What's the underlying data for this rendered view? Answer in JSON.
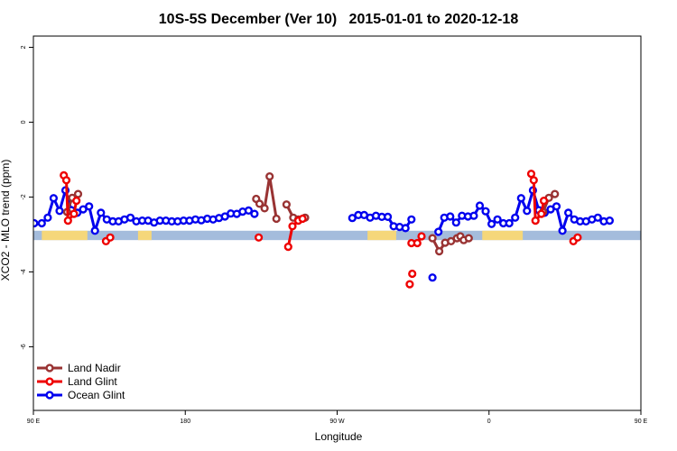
{
  "chart_data": {
    "type": "line",
    "title": "10S-5S December (Ver 10)   2015-01-01 to 2020-12-18",
    "xlabel": "Longitude",
    "ylabel": "XCO2 - MLO trend (ppm)",
    "xlim": [
      90,
      450
    ],
    "ylim": [
      -7.7,
      2.3
    ],
    "x_ticks": [
      {
        "value": 90,
        "label": "90 E"
      },
      {
        "value": 180,
        "label": "180"
      },
      {
        "value": 270,
        "label": "90 W"
      },
      {
        "value": 360,
        "label": "0"
      },
      {
        "value": 450,
        "label": "90 E"
      },
      {
        "value": 540,
        "label": "180"
      }
    ],
    "y_ticks": [
      {
        "value": 2,
        "label": "2"
      },
      {
        "value": 0,
        "label": "0"
      },
      {
        "value": -2,
        "label": "-2"
      },
      {
        "value": -4,
        "label": "-4"
      },
      {
        "value": -6,
        "label": "-6"
      }
    ],
    "grid": false,
    "legend_position": "bottom-left",
    "legend": [
      {
        "name": "Land Nadir",
        "color": "#993333"
      },
      {
        "name": "Land Glint",
        "color": "#ee0000"
      },
      {
        "name": "Ocean Glint",
        "color": "#0000ee"
      }
    ],
    "band": {
      "y_top": -2.9,
      "y_bottom": -3.15,
      "land_color": "#f5d77a",
      "ocean_color": "#a4bcdc"
    },
    "land_segments": [
      [
        95,
        122
      ],
      [
        152,
        160
      ],
      [
        288,
        305
      ],
      [
        356,
        380
      ],
      [
        492,
        524
      ],
      [
        550,
        560
      ]
    ],
    "series": [
      {
        "name": "Ocean Glint",
        "color": "#0000ee",
        "segments": [
          [
            [
              90.5,
              -2.7
            ],
            [
              95,
              -2.7
            ],
            [
              98.5,
              -2.55
            ],
            [
              102,
              -2.03
            ],
            [
              105.5,
              -2.37
            ],
            [
              109,
              -1.82
            ],
            [
              112.5,
              -2.35
            ],
            [
              116,
              -2.42
            ],
            [
              119.5,
              -2.33
            ],
            [
              123,
              -2.25
            ],
            [
              126.5,
              -2.9
            ],
            [
              130,
              -2.42
            ],
            [
              133.5,
              -2.6
            ],
            [
              137,
              -2.65
            ],
            [
              140.5,
              -2.65
            ],
            [
              144,
              -2.6
            ],
            [
              147.5,
              -2.55
            ],
            [
              151,
              -2.65
            ],
            [
              154.5,
              -2.63
            ],
            [
              158,
              -2.63
            ],
            [
              161.5,
              -2.68
            ],
            [
              165,
              -2.63
            ],
            [
              168.5,
              -2.63
            ],
            [
              172,
              -2.65
            ],
            [
              175.5,
              -2.65
            ],
            [
              179,
              -2.63
            ],
            [
              182.5,
              -2.63
            ],
            [
              186,
              -2.6
            ],
            [
              189.5,
              -2.62
            ],
            [
              193,
              -2.58
            ],
            [
              196.5,
              -2.6
            ],
            [
              200,
              -2.56
            ],
            [
              203.5,
              -2.52
            ],
            [
              207,
              -2.44
            ],
            [
              210.5,
              -2.45
            ],
            [
              214,
              -2.39
            ],
            [
              217.5,
              -2.36
            ],
            [
              221,
              -2.45
            ]
          ],
          [
            [
              279,
              -2.56
            ],
            [
              282.5,
              -2.48
            ],
            [
              286,
              -2.48
            ],
            [
              289.5,
              -2.55
            ],
            [
              293,
              -2.5
            ],
            [
              296.5,
              -2.53
            ],
            [
              300,
              -2.53
            ],
            [
              303.5,
              -2.78
            ],
            [
              307,
              -2.8
            ],
            [
              310.5,
              -2.83
            ],
            [
              314,
              -2.6
            ]
          ],
          [
            [
              330,
              -2.93
            ],
            [
              333.5,
              -2.55
            ],
            [
              337,
              -2.52
            ],
            [
              340.5,
              -2.68
            ],
            [
              344,
              -2.5
            ],
            [
              347.5,
              -2.52
            ],
            [
              351,
              -2.5
            ],
            [
              354.5,
              -2.23
            ],
            [
              358,
              -2.38
            ],
            [
              361.5,
              -2.72
            ],
            [
              365,
              -2.6
            ],
            [
              368.5,
              -2.7
            ],
            [
              372,
              -2.7
            ],
            [
              375.5,
              -2.55
            ],
            [
              379,
              -2.03
            ],
            [
              382.5,
              -2.37
            ],
            [
              386,
              -1.82
            ],
            [
              389.5,
              -2.35
            ],
            [
              393,
              -2.42
            ],
            [
              396.5,
              -2.33
            ],
            [
              400,
              -2.25
            ],
            [
              403.5,
              -2.9
            ],
            [
              407,
              -2.42
            ],
            [
              410.5,
              -2.6
            ],
            [
              414,
              -2.65
            ],
            [
              417.5,
              -2.65
            ],
            [
              421,
              -2.6
            ],
            [
              424.5,
              -2.55
            ],
            [
              428,
              -2.65
            ],
            [
              431.5,
              -2.63
            ]
          ]
        ],
        "points": [
          [
            326.5,
            -4.15
          ]
        ]
      },
      {
        "name": "Land Glint",
        "color": "#ee0000",
        "segments": [
          [
            [
              108,
              -1.42
            ],
            [
              109.5,
              -1.55
            ],
            [
              110.5,
              -2.63
            ],
            [
              114,
              -2.45
            ],
            [
              115.5,
              -2.1
            ]
          ],
          [
            [
              133,
              -3.18
            ],
            [
              135.5,
              -3.08
            ]
          ],
          [
            [
              223.5,
              -3.08
            ]
          ],
          [
            [
              241,
              -3.33
            ],
            [
              243.5,
              -2.78
            ],
            [
              247,
              -2.63
            ],
            [
              249.5,
              -2.58
            ]
          ],
          [
            [
              314,
              -3.23
            ],
            [
              317.5,
              -3.23
            ],
            [
              320,
              -3.05
            ]
          ],
          [
            [
              385,
              -1.38
            ],
            [
              386.5,
              -1.55
            ],
            [
              387.5,
              -2.63
            ],
            [
              391,
              -2.45
            ],
            [
              392.5,
              -2.1
            ]
          ],
          [
            [
              410,
              -3.18
            ],
            [
              412.5,
              -3.08
            ]
          ]
        ],
        "points": [
          [
            313,
            -4.33
          ],
          [
            314.5,
            -4.05
          ]
        ]
      },
      {
        "name": "Land Nadir",
        "color": "#993333",
        "segments": [
          [
            [
              110,
              -2.4
            ],
            [
              113,
              -2.02
            ],
            [
              116.5,
              -1.92
            ]
          ],
          [
            [
              222,
              -2.05
            ],
            [
              224,
              -2.18
            ],
            [
              227,
              -2.3
            ],
            [
              230,
              -1.45
            ],
            [
              234,
              -2.58
            ]
          ],
          [
            [
              240,
              -2.2
            ],
            [
              244,
              -2.55
            ],
            [
              247,
              -2.6
            ],
            [
              251,
              -2.55
            ]
          ],
          [
            [
              326.5,
              -3.1
            ],
            [
              330.5,
              -3.45
            ],
            [
              334,
              -3.22
            ],
            [
              337.5,
              -3.18
            ],
            [
              341,
              -3.1
            ]
          ],
          [
            [
              343,
              -3.05
            ],
            [
              345,
              -3.15
            ],
            [
              348,
              -3.1
            ]
          ],
          [
            [
              392,
              -2.4
            ],
            [
              395.5,
              -2.02
            ],
            [
              399,
              -1.92
            ]
          ]
        ]
      }
    ]
  }
}
